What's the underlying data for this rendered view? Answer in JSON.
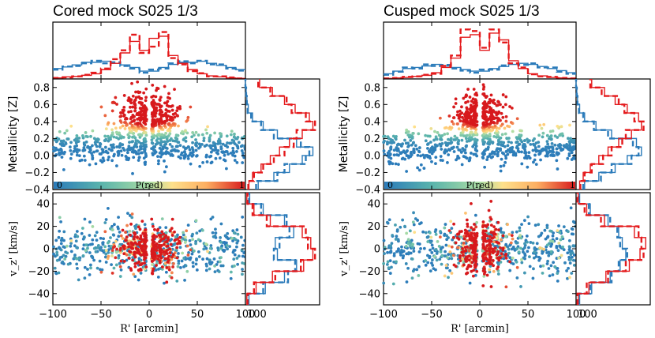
{
  "chart_data": [
    {
      "type": "scatter",
      "title": "Cored mock S025 1/3",
      "xlabel": "R' [arcmin]",
      "ylabel_metallicity": "Metallicity [Z]",
      "ylabel_velocity": "v_z' [km/s]",
      "xlim": [
        -100,
        100
      ],
      "xticks": [
        "-100",
        "-50",
        "0",
        "50",
        "100"
      ],
      "metallicity_ylim": [
        -0.4,
        0.9
      ],
      "metallicity_yticks": [
        "0.8",
        "0.6",
        "0.4",
        "0.2",
        "0.0",
        "-0.2",
        "-0.4"
      ],
      "velocity_ylim": [
        -50,
        50
      ],
      "velocity_yticks": [
        "40",
        "20",
        "0",
        "-20",
        "-40"
      ],
      "colorbar": {
        "label": "P(red)",
        "min_label": "0",
        "max_label": "1"
      },
      "populations": {
        "red": {
          "color": "#e41a1c",
          "metallicity_center": 0.45,
          "metallicity_spread": 0.15,
          "velocity_spread": 10,
          "radial_scale": 18
        },
        "blue": {
          "color": "#2b7bba",
          "metallicity_center": 0.1,
          "metallicity_spread": 0.1,
          "velocity_spread": 12,
          "radial_scale": 55
        }
      },
      "top_histogram": {
        "bins": [
          -100,
          -90,
          -80,
          -70,
          -60,
          -50,
          -40,
          -30,
          -20,
          -10,
          0,
          10,
          20,
          30,
          40,
          50,
          60,
          70,
          80,
          90,
          100
        ],
        "red_solid": [
          0.02,
          0.04,
          0.05,
          0.07,
          0.1,
          0.18,
          0.3,
          0.5,
          0.72,
          0.55,
          0.78,
          0.82,
          0.45,
          0.3,
          0.18,
          0.1,
          0.06,
          0.04,
          0.02,
          0.01
        ],
        "red_dashed": [
          0.02,
          0.03,
          0.05,
          0.08,
          0.12,
          0.2,
          0.38,
          0.55,
          0.85,
          0.5,
          0.62,
          0.9,
          0.4,
          0.28,
          0.15,
          0.11,
          0.05,
          0.05,
          0.03,
          0.01
        ],
        "blue_solid": [
          0.2,
          0.23,
          0.27,
          0.32,
          0.32,
          0.34,
          0.3,
          0.27,
          0.22,
          0.15,
          0.15,
          0.22,
          0.28,
          0.32,
          0.32,
          0.34,
          0.3,
          0.26,
          0.22,
          0.18
        ],
        "blue_dashed": [
          0.18,
          0.24,
          0.25,
          0.3,
          0.35,
          0.3,
          0.32,
          0.25,
          0.2,
          0.12,
          0.18,
          0.2,
          0.3,
          0.34,
          0.3,
          0.35,
          0.28,
          0.28,
          0.2,
          0.16
        ]
      },
      "metallicity_histogram": {
        "bins": [
          -0.4,
          -0.3,
          -0.2,
          -0.1,
          0.0,
          0.1,
          0.2,
          0.3,
          0.4,
          0.5,
          0.6,
          0.7,
          0.8,
          0.9
        ],
        "red_solid": [
          0.05,
          0.1,
          0.22,
          0.35,
          0.48,
          0.62,
          0.8,
          0.95,
          0.9,
          0.7,
          0.55,
          0.38,
          0.2
        ],
        "red_dashed": [
          0.04,
          0.12,
          0.25,
          0.4,
          0.55,
          0.68,
          0.72,
          0.98,
          0.85,
          0.65,
          0.58,
          0.35,
          0.18
        ],
        "blue_solid": [
          0.18,
          0.4,
          0.62,
          0.8,
          0.95,
          0.72,
          0.45,
          0.25,
          0.1,
          0.04,
          0.02,
          0.01,
          0.0
        ],
        "blue_dashed": [
          0.15,
          0.45,
          0.55,
          0.85,
          0.9,
          0.78,
          0.4,
          0.22,
          0.08,
          0.03,
          0.02,
          0.01,
          0.0
        ]
      },
      "velocity_histogram": {
        "bins": [
          -50,
          -40,
          -30,
          -20,
          -10,
          0,
          10,
          20,
          30,
          40,
          50
        ],
        "red_solid": [
          0.02,
          0.15,
          0.38,
          0.82,
          0.95,
          0.92,
          0.8,
          0.35,
          0.12,
          0.02
        ],
        "red_dashed": [
          0.03,
          0.12,
          0.42,
          0.78,
          0.98,
          0.88,
          0.85,
          0.3,
          0.1,
          0.03
        ],
        "blue_solid": [
          0.05,
          0.28,
          0.55,
          0.72,
          0.45,
          0.42,
          0.68,
          0.55,
          0.25,
          0.06
        ],
        "blue_dashed": [
          0.04,
          0.25,
          0.6,
          0.7,
          0.4,
          0.48,
          0.62,
          0.58,
          0.22,
          0.05
        ]
      }
    },
    {
      "type": "scatter",
      "title": "Cusped mock S025 1/3",
      "xlabel": "R' [arcmin]",
      "ylabel_metallicity": "Metallicity [Z]",
      "ylabel_velocity": "v_z' [km/s]",
      "xlim": [
        -100,
        100
      ],
      "xticks": [
        "-100",
        "-50",
        "0",
        "50",
        "100"
      ],
      "metallicity_ylim": [
        -0.4,
        0.9
      ],
      "metallicity_yticks": [
        "0.8",
        "0.6",
        "0.4",
        "0.2",
        "0.0",
        "-0.2",
        "-0.4"
      ],
      "velocity_ylim": [
        -50,
        50
      ],
      "velocity_yticks": [
        "40",
        "20",
        "0",
        "-20",
        "-40"
      ],
      "colorbar": {
        "label": "P(red)",
        "min_label": "0",
        "max_label": "1"
      },
      "populations": {
        "red": {
          "color": "#e41a1c",
          "metallicity_center": 0.42,
          "metallicity_spread": 0.15,
          "velocity_spread": 12,
          "radial_scale": 14
        },
        "blue": {
          "color": "#2b7bba",
          "metallicity_center": 0.1,
          "metallicity_spread": 0.1,
          "velocity_spread": 13,
          "radial_scale": 55
        }
      },
      "top_histogram": {
        "bins": [
          -100,
          -90,
          -80,
          -70,
          -60,
          -50,
          -40,
          -30,
          -20,
          -10,
          0,
          10,
          20,
          30,
          40,
          50,
          60,
          70,
          80,
          90,
          100
        ],
        "red_solid": [
          0.01,
          0.02,
          0.03,
          0.05,
          0.07,
          0.12,
          0.22,
          0.4,
          0.8,
          0.85,
          0.55,
          0.88,
          0.75,
          0.35,
          0.2,
          0.1,
          0.06,
          0.03,
          0.02,
          0.01
        ],
        "red_dashed": [
          0.01,
          0.02,
          0.04,
          0.05,
          0.08,
          0.1,
          0.25,
          0.45,
          0.95,
          0.92,
          0.6,
          0.95,
          0.7,
          0.3,
          0.22,
          0.09,
          0.05,
          0.04,
          0.02,
          0.01
        ],
        "blue_solid": [
          0.1,
          0.15,
          0.2,
          0.22,
          0.25,
          0.28,
          0.25,
          0.22,
          0.18,
          0.15,
          0.15,
          0.2,
          0.24,
          0.28,
          0.3,
          0.28,
          0.24,
          0.2,
          0.16,
          0.12
        ],
        "blue_dashed": [
          0.08,
          0.14,
          0.22,
          0.2,
          0.28,
          0.25,
          0.27,
          0.2,
          0.16,
          0.12,
          0.18,
          0.18,
          0.26,
          0.3,
          0.27,
          0.3,
          0.22,
          0.22,
          0.14,
          0.1
        ]
      },
      "metallicity_histogram": {
        "bins": [
          -0.4,
          -0.3,
          -0.2,
          -0.1,
          0.0,
          0.1,
          0.2,
          0.3,
          0.4,
          0.5,
          0.6,
          0.7,
          0.8,
          0.9
        ],
        "red_solid": [
          0.05,
          0.1,
          0.2,
          0.32,
          0.45,
          0.6,
          0.78,
          0.92,
          0.88,
          0.72,
          0.55,
          0.4,
          0.22
        ],
        "red_dashed": [
          0.06,
          0.12,
          0.22,
          0.38,
          0.5,
          0.65,
          0.7,
          0.95,
          0.82,
          0.68,
          0.6,
          0.36,
          0.2
        ],
        "blue_solid": [
          0.12,
          0.32,
          0.55,
          0.72,
          0.92,
          0.85,
          0.5,
          0.28,
          0.12,
          0.05,
          0.02,
          0.01,
          0.0
        ],
        "blue_dashed": [
          0.1,
          0.35,
          0.5,
          0.78,
          0.88,
          0.8,
          0.45,
          0.25,
          0.1,
          0.04,
          0.02,
          0.01,
          0.0
        ]
      },
      "velocity_histogram": {
        "bins": [
          -50,
          -40,
          -30,
          -20,
          -10,
          0,
          10,
          20,
          30,
          40,
          50
        ],
        "red_solid": [
          0.03,
          0.18,
          0.42,
          0.75,
          0.9,
          0.98,
          0.82,
          0.4,
          0.15,
          0.03
        ],
        "red_dashed": [
          0.02,
          0.15,
          0.45,
          0.7,
          0.95,
          0.92,
          0.88,
          0.35,
          0.12,
          0.02
        ],
        "blue_solid": [
          0.05,
          0.22,
          0.48,
          0.62,
          0.7,
          0.65,
          0.6,
          0.45,
          0.2,
          0.05
        ],
        "blue_dashed": [
          0.04,
          0.2,
          0.5,
          0.6,
          0.72,
          0.62,
          0.58,
          0.48,
          0.18,
          0.04
        ]
      }
    }
  ]
}
